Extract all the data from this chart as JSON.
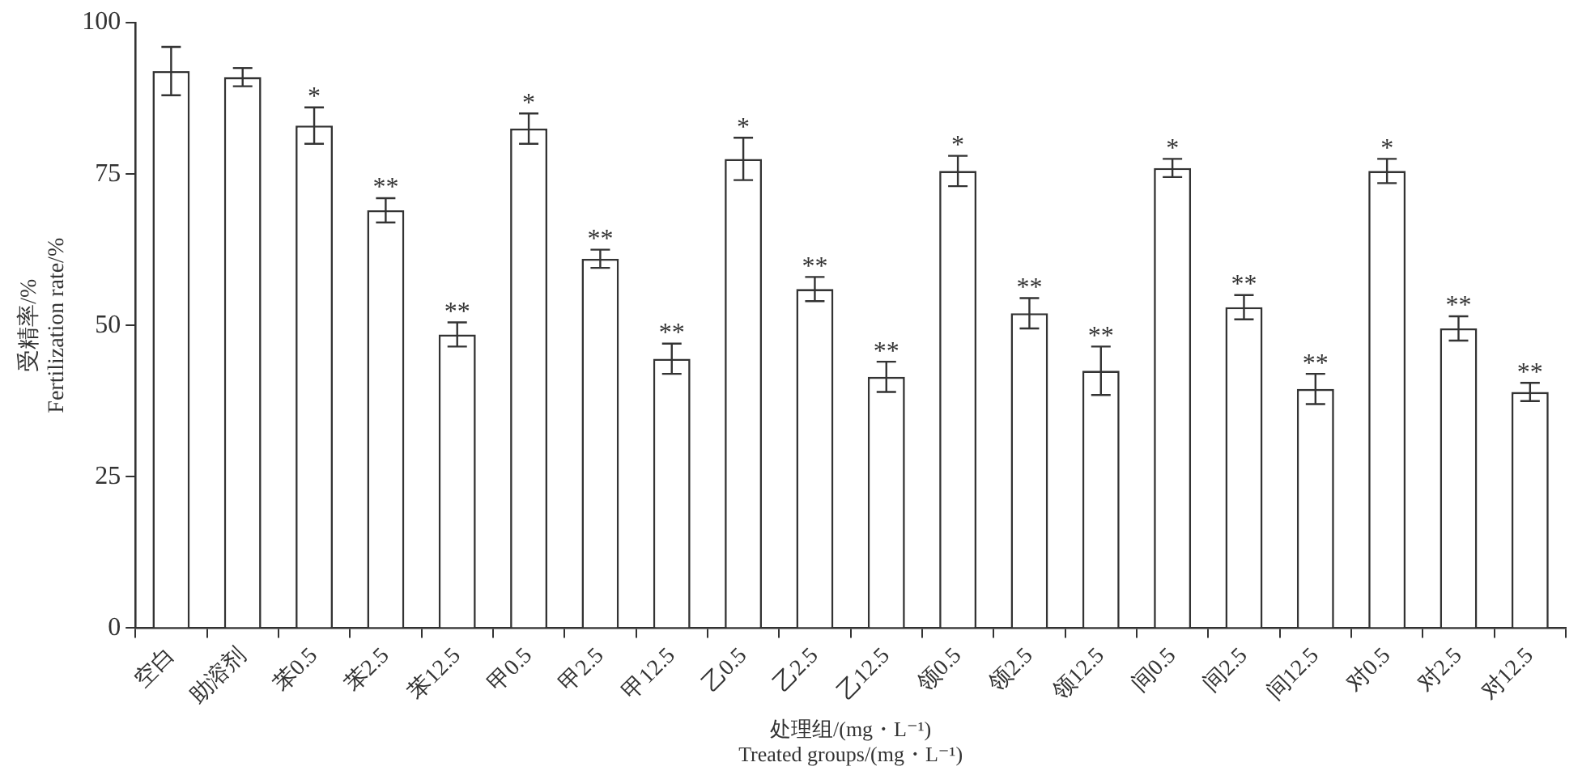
{
  "chart_data": {
    "type": "bar",
    "xlabel": "处理组/(mg・L⁻¹)\nTreated groups/(mg・L⁻¹)",
    "ylabel": "受精率/%\nFertilization rate/%",
    "categories": [
      "空白",
      "助溶剂",
      "苯0.5",
      "苯2.5",
      "苯12.5",
      "甲0.5",
      "甲2.5",
      "甲12.5",
      "乙0.5",
      "乙2.5",
      "乙12.5",
      "领0.5",
      "领2.5",
      "领12.5",
      "间0.5",
      "间2.5",
      "间12.5",
      "对0.5",
      "对2.5",
      "对12.5"
    ],
    "values": [
      92,
      91,
      83,
      69,
      48.5,
      82.5,
      61,
      44.5,
      77.5,
      56,
      41.5,
      75.5,
      52,
      42.5,
      76,
      53,
      39.5,
      75.5,
      49.5,
      39
    ],
    "errors": [
      4,
      1.5,
      3,
      2,
      2,
      2.5,
      1.5,
      2.5,
      3.5,
      2,
      2.5,
      2.5,
      2.5,
      4,
      1.5,
      2,
      2.5,
      2,
      2,
      1.5
    ],
    "color": "#ffffff",
    "ylim": [
      0,
      100
    ],
    "yticks": [
      0,
      25,
      50,
      75,
      100
    ],
    "grid": false,
    "legend": false,
    "annotations": [
      {
        "text": "*",
        "x": "苯0.5",
        "y": 86
      },
      {
        "text": "**",
        "x": "苯2.5",
        "y": 71
      },
      {
        "text": "**",
        "x": "苯12.5",
        "y": 50.5
      },
      {
        "text": "*",
        "x": "甲0.5",
        "y": 85
      },
      {
        "text": "**",
        "x": "甲2.5",
        "y": 62.5
      },
      {
        "text": "**",
        "x": "甲12.5",
        "y": 47
      },
      {
        "text": "*",
        "x": "乙0.5",
        "y": 81
      },
      {
        "text": "**",
        "x": "乙2.5",
        "y": 58
      },
      {
        "text": "**",
        "x": "乙12.5",
        "y": 44
      },
      {
        "text": "*",
        "x": "领0.5",
        "y": 78
      },
      {
        "text": "**",
        "x": "领2.5",
        "y": 54.5
      },
      {
        "text": "**",
        "x": "领12.5",
        "y": 46.5
      },
      {
        "text": "*",
        "x": "间0.5",
        "y": 77.5
      },
      {
        "text": "**",
        "x": "间2.5",
        "y": 55
      },
      {
        "text": "**",
        "x": "间12.5",
        "y": 42
      },
      {
        "text": "*",
        "x": "对0.5",
        "y": 77.5
      },
      {
        "text": "**",
        "x": "对2.5",
        "y": 51.5
      },
      {
        "text": "**",
        "x": "对12.5",
        "y": 40.5
      }
    ]
  }
}
